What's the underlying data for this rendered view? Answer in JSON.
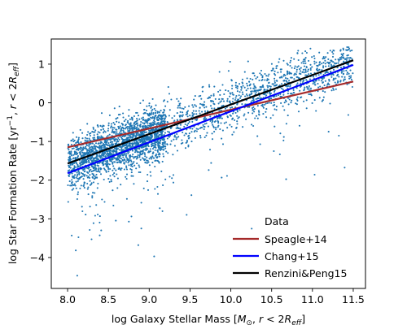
{
  "chart_data": {
    "type": "scatter",
    "title": "",
    "xlabel": {
      "pre": "log Galaxy Stellar Mass [",
      "sym": "M",
      "sub_sun": "⊙",
      "mid": ", ",
      "r": "r",
      "lt": " < 2",
      "R": "R",
      "sub_eff": "eff",
      "post": "]"
    },
    "ylabel": {
      "pre": "log Star Formation Rate [yr",
      "sup": "−1",
      "mid": ", ",
      "r": "r",
      "lt": " < 2",
      "R": "R",
      "sub_eff": "eff",
      "post": "]"
    },
    "xlim": [
      7.8,
      11.65
    ],
    "ylim": [
      -4.8,
      1.65
    ],
    "xticks": [
      "8.0",
      "8.5",
      "9.0",
      "9.5",
      "10.0",
      "10.5",
      "11.0",
      "11.5"
    ],
    "yticks": [
      "−4",
      "−3",
      "−2",
      "−1",
      "0",
      "1"
    ],
    "xtick_values": [
      8.0,
      8.5,
      9.0,
      9.5,
      10.0,
      10.5,
      11.0,
      11.5
    ],
    "ytick_values": [
      -4,
      -3,
      -2,
      -1,
      0,
      1
    ],
    "scatter": {
      "name": "Data",
      "color": "#1f77b4",
      "n_points": 3200,
      "x_range": [
        8.0,
        11.5
      ],
      "relation": "y ≈ 0.78·(x − 10) − 0.05",
      "scatter_dex": 0.33
    },
    "lines": [
      {
        "name": "Speagle+14",
        "color": "#a52a2a",
        "x": [
          8.0,
          11.5
        ],
        "y": [
          -1.15,
          0.55
        ]
      },
      {
        "name": "Chang+15",
        "color": "#0000ff",
        "x": [
          8.0,
          11.5
        ],
        "y": [
          -1.82,
          0.98
        ]
      },
      {
        "name": "Renzini&Peng15",
        "color": "#000000",
        "x": [
          8.0,
          11.5
        ],
        "y": [
          -1.57,
          1.1
        ]
      }
    ],
    "legend": {
      "placement": "lower-right",
      "entries": [
        "Data",
        "Speagle+14",
        "Chang+15",
        "Renzini&Peng15"
      ]
    }
  }
}
